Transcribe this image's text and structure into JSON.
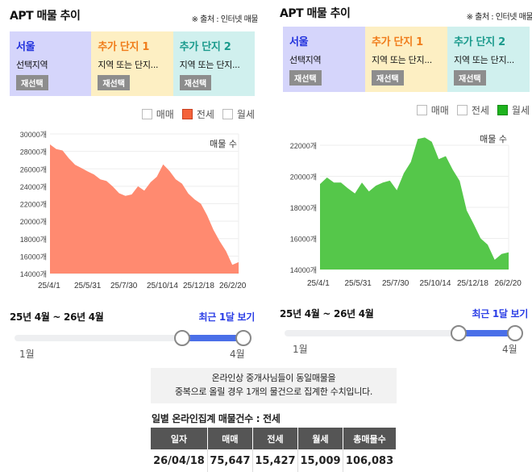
{
  "panels": [
    {
      "title": "APT 매물 추이",
      "source": "※ 출처 : 인터넷 매물",
      "selectors": [
        {
          "name": "서울",
          "sub": "선택지역",
          "button": "재선택",
          "bg": "#d5d5fb",
          "color": "#2233dd"
        },
        {
          "name": "추가 단지 1",
          "sub": "지역 또는 단지...",
          "button": "재선택",
          "bg": "#fdefc3",
          "color": "#f07c1a"
        },
        {
          "name": "추가 단지 2",
          "sub": "지역 또는 단지...",
          "button": "재선택",
          "bg": "#d0f0ee",
          "color": "#1a9a8c"
        }
      ],
      "legend": [
        {
          "label": "매매",
          "checked": false
        },
        {
          "label": "전세",
          "checked": true,
          "color": "#f4623a"
        },
        {
          "label": "월세",
          "checked": false
        }
      ],
      "range_label": "25년 4월 ~ 26년 4월",
      "recent_label": "최근 1달 보기",
      "slider": {
        "min_label": "1월",
        "max_label": "4월"
      }
    },
    {
      "title": "APT 매물 추이",
      "source": "※ 출처 : 인터넷 매물",
      "selectors": [
        {
          "name": "서울",
          "sub": "선택지역",
          "button": "재선택",
          "bg": "#d5d5fb",
          "color": "#2233dd"
        },
        {
          "name": "추가 단지 1",
          "sub": "지역 또는 단지...",
          "button": "재선택",
          "bg": "#fdefc3",
          "color": "#f07c1a"
        },
        {
          "name": "추가 단지 2",
          "sub": "지역 또는 단지...",
          "button": "재선택",
          "bg": "#d0f0ee",
          "color": "#1a9a8c"
        }
      ],
      "legend": [
        {
          "label": "매매",
          "checked": false
        },
        {
          "label": "전세",
          "checked": false
        },
        {
          "label": "월세",
          "checked": true,
          "color": "#1eb31e"
        }
      ],
      "range_label": "25년 4월 ~ 26년 4월",
      "recent_label": "최근 1달 보기",
      "slider": {
        "min_label": "1월",
        "max_label": "4월"
      }
    }
  ],
  "notice": {
    "line1": "온라인상 중개사님들이 동일매물을",
    "line2": "중복으로 올릴 경우 1개의 물건으로 집계한 수치입니다."
  },
  "table": {
    "title": "일별 온라인집계 매물건수 : 전세",
    "headers": [
      "일자",
      "매매",
      "전세",
      "월세",
      "총매물수"
    ],
    "rows": [
      [
        "26/04/18",
        "75,647",
        "15,427",
        "15,009",
        "106,083"
      ]
    ]
  },
  "chart_data": [
    {
      "type": "area",
      "title": "APT 매물 추이 - 전세",
      "series_label": "매물 수",
      "color": "#ff8a70",
      "xlabel": "",
      "ylabel": "",
      "x_ticks": [
        "25/4/1",
        "25/5/31",
        "25/7/30",
        "25/10/14",
        "25/12/18",
        "26/2/20"
      ],
      "y_ticks": [
        "14000개",
        "16000개",
        "18000개",
        "20000개",
        "22000개",
        "24000개",
        "26000개",
        "28000개",
        "30000개"
      ],
      "ylim": [
        14000,
        30000
      ],
      "grid": true,
      "x": [
        "25/4/1",
        "25/4/8",
        "25/4/22",
        "25/5/1",
        "25/5/15",
        "25/5/31",
        "25/6/13",
        "25/6/25",
        "25/7/6",
        "25/7/20",
        "25/7/30",
        "25/8/18",
        "25/9/5",
        "25/9/20",
        "25/10/1",
        "25/10/14",
        "25/10/22",
        "25/11/5",
        "25/11/20",
        "25/12/5",
        "25/12/18",
        "25/12/28",
        "26/1/10",
        "26/1/30",
        "26/2/10",
        "26/2/20",
        "26/3/5",
        "26/3/20",
        "26/4/1",
        "26/4/10",
        "26/4/18"
      ],
      "values": [
        28800,
        28400,
        28100,
        27200,
        26600,
        26100,
        25700,
        25500,
        24800,
        24600,
        24100,
        23200,
        22900,
        23200,
        24000,
        23500,
        24600,
        25100,
        26500,
        25900,
        24800,
        24300,
        23300,
        22500,
        22000,
        20800,
        19000,
        17700,
        16700,
        15000,
        15300
      ]
    },
    {
      "type": "area",
      "title": "APT 매물 추이 - 월세",
      "series_label": "매물 수",
      "color": "#55c74a",
      "xlabel": "",
      "ylabel": "",
      "x_ticks": [
        "25/4/1",
        "25/5/31",
        "25/7/30",
        "25/10/14",
        "25/12/18",
        "26/2/20"
      ],
      "y_ticks": [
        "14000개",
        "16000개",
        "18000개",
        "20000개",
        "22000개"
      ],
      "ylim": [
        14000,
        22000
      ],
      "grid": true,
      "x": [
        "25/4/1",
        "25/4/12",
        "25/4/28",
        "25/5/15",
        "25/6/5",
        "25/6/20",
        "25/7/1",
        "25/7/20",
        "25/8/5",
        "25/8/25",
        "25/9/10",
        "25/9/20",
        "25/10/1",
        "25/10/14",
        "25/10/22",
        "25/11/10",
        "25/11/30",
        "25/12/18",
        "25/12/28",
        "26/1/10",
        "26/1/25",
        "26/2/5",
        "26/2/20",
        "26/3/1",
        "26/3/15",
        "26/3/25",
        "26/4/5",
        "26/4/18"
      ],
      "values": [
        19500,
        20000,
        19600,
        19600,
        19300,
        18900,
        19600,
        19100,
        19400,
        19600,
        19800,
        19100,
        20200,
        21000,
        22400,
        22500,
        22300,
        21100,
        21300,
        20500,
        19700,
        17800,
        17000,
        16000,
        15600,
        14700,
        15000,
        15100
      ]
    }
  ]
}
